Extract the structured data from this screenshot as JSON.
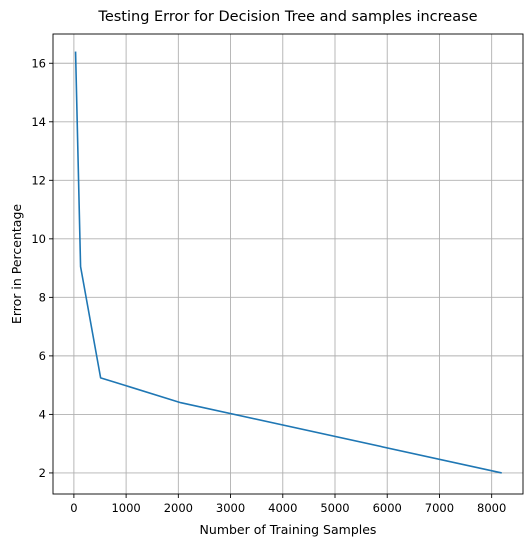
{
  "chart_data": {
    "type": "line",
    "title": "Testing Error for Decision Tree and samples increase",
    "xlabel": "Number of Training Samples",
    "ylabel": "Error in Percentage",
    "xlim": [
      -400,
      8600
    ],
    "ylim": [
      1.28,
      17.0
    ],
    "xticks": [
      0,
      1000,
      2000,
      3000,
      4000,
      5000,
      6000,
      7000,
      8000
    ],
    "yticks": [
      2,
      4,
      6,
      8,
      10,
      12,
      14,
      16
    ],
    "grid": true,
    "line_color": "#1f77b4",
    "series": [
      {
        "x": [
          32,
          128,
          512,
          2048,
          8192
        ],
        "y": [
          16.4,
          9.05,
          5.25,
          4.4,
          2.0
        ]
      }
    ]
  }
}
